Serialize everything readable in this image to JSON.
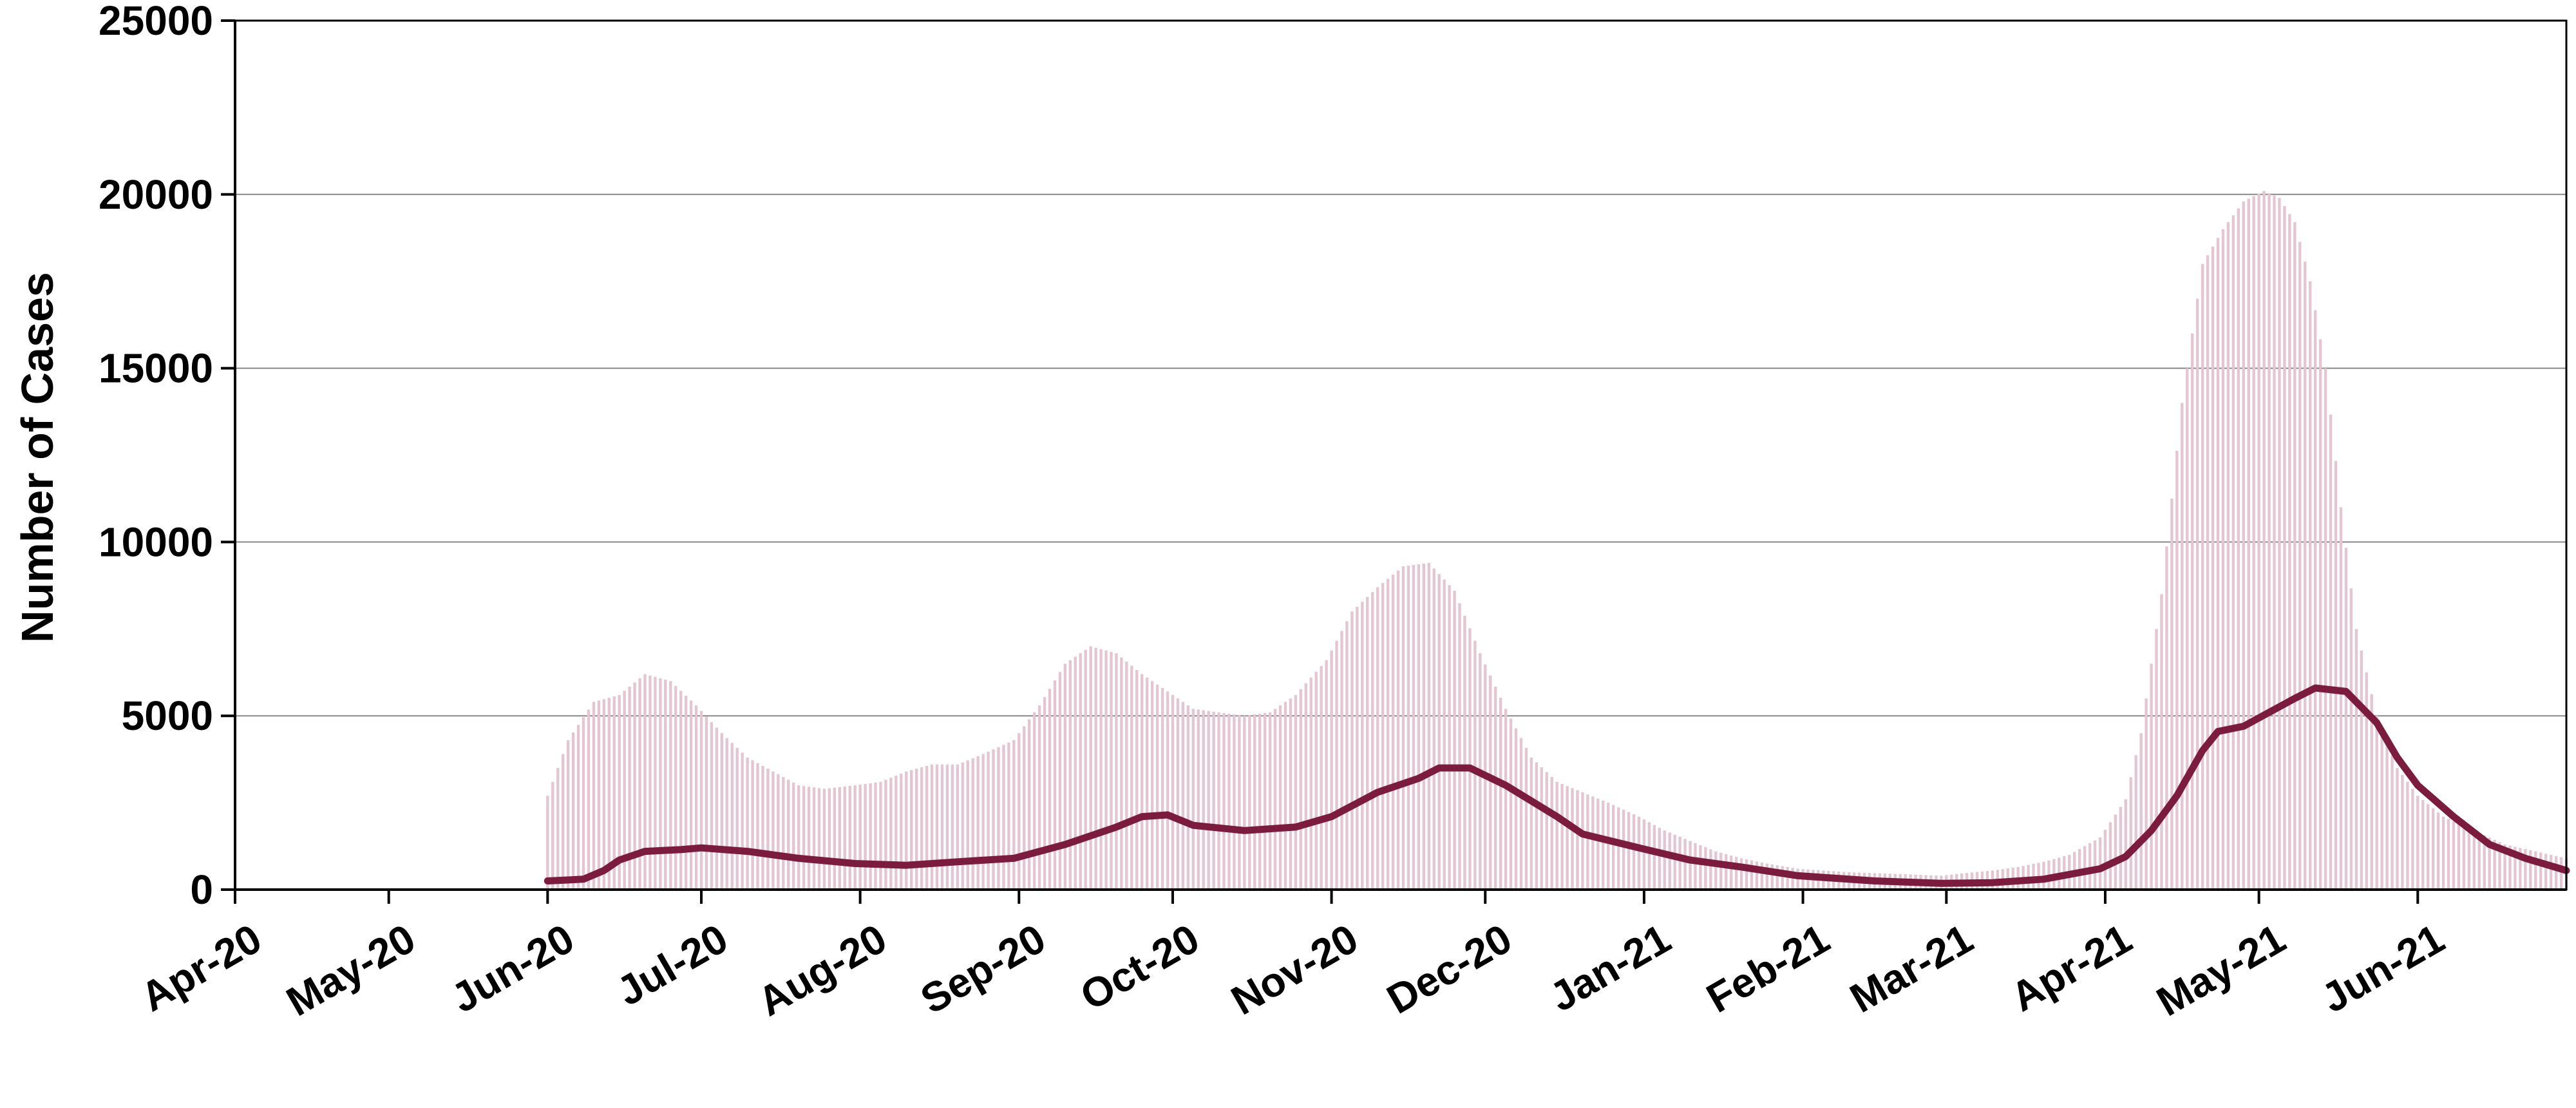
{
  "chart_data": {
    "type": "bar",
    "title": "",
    "xlabel": "",
    "ylabel": "Number of Cases",
    "ylim": [
      0,
      25000
    ],
    "y_ticks": [
      0,
      5000,
      10000,
      15000,
      20000,
      25000
    ],
    "y_tick_labels": [
      "0",
      "5000",
      "10000",
      "15000",
      "20000",
      "25000"
    ],
    "x_range": [
      "2020-04-01",
      "2021-06-30"
    ],
    "x_ticks": [
      {
        "date": "2020-04-01",
        "label": "Apr-20"
      },
      {
        "date": "2020-05-01",
        "label": "May-20"
      },
      {
        "date": "2020-06-01",
        "label": "Jun-20"
      },
      {
        "date": "2020-07-01",
        "label": "Jul-20"
      },
      {
        "date": "2020-08-01",
        "label": "Aug-20"
      },
      {
        "date": "2020-09-01",
        "label": "Sep-20"
      },
      {
        "date": "2020-10-01",
        "label": "Oct-20"
      },
      {
        "date": "2020-11-01",
        "label": "Nov-20"
      },
      {
        "date": "2020-12-01",
        "label": "Dec-20"
      },
      {
        "date": "2021-01-01",
        "label": "Jan-21"
      },
      {
        "date": "2021-02-01",
        "label": "Feb-21"
      },
      {
        "date": "2021-03-01",
        "label": "Mar-21"
      },
      {
        "date": "2021-04-01",
        "label": "Apr-21"
      },
      {
        "date": "2021-05-01",
        "label": "May-21"
      },
      {
        "date": "2021-06-01",
        "label": "Jun-21"
      }
    ],
    "grid": "horizontal",
    "legend": "none",
    "colors": {
      "bars": "#e3c6d2",
      "line": "#7b1c3e",
      "grid": "#888888",
      "axis": "#000000"
    },
    "series": [
      {
        "type": "bar",
        "points": [
          [
            "2020-06-01",
            2700
          ],
          [
            "2020-06-05",
            4300
          ],
          [
            "2020-06-10",
            5400
          ],
          [
            "2020-06-15",
            5600
          ],
          [
            "2020-06-20",
            6200
          ],
          [
            "2020-06-25",
            6000
          ],
          [
            "2020-06-30",
            5300
          ],
          [
            "2020-07-05",
            4500
          ],
          [
            "2020-07-10",
            3800
          ],
          [
            "2020-07-15",
            3400
          ],
          [
            "2020-07-20",
            3000
          ],
          [
            "2020-07-25",
            2900
          ],
          [
            "2020-07-31",
            3000
          ],
          [
            "2020-08-05",
            3100
          ],
          [
            "2020-08-10",
            3400
          ],
          [
            "2020-08-15",
            3600
          ],
          [
            "2020-08-20",
            3600
          ],
          [
            "2020-08-25",
            3900
          ],
          [
            "2020-08-31",
            4300
          ],
          [
            "2020-09-05",
            5300
          ],
          [
            "2020-09-10",
            6500
          ],
          [
            "2020-09-15",
            7000
          ],
          [
            "2020-09-20",
            6800
          ],
          [
            "2020-09-25",
            6200
          ],
          [
            "2020-09-30",
            5700
          ],
          [
            "2020-10-05",
            5200
          ],
          [
            "2020-10-10",
            5100
          ],
          [
            "2020-10-15",
            5000
          ],
          [
            "2020-10-20",
            5100
          ],
          [
            "2020-10-25",
            5600
          ],
          [
            "2020-10-31",
            6600
          ],
          [
            "2020-11-05",
            8000
          ],
          [
            "2020-11-10",
            8700
          ],
          [
            "2020-11-15",
            9300
          ],
          [
            "2020-11-20",
            9400
          ],
          [
            "2020-11-25",
            8600
          ],
          [
            "2020-11-30",
            6800
          ],
          [
            "2020-12-05",
            5200
          ],
          [
            "2020-12-10",
            3800
          ],
          [
            "2020-12-15",
            3100
          ],
          [
            "2020-12-20",
            2800
          ],
          [
            "2020-12-25",
            2500
          ],
          [
            "2020-12-31",
            2100
          ],
          [
            "2021-01-05",
            1700
          ],
          [
            "2021-01-10",
            1400
          ],
          [
            "2021-01-15",
            1100
          ],
          [
            "2021-01-20",
            900
          ],
          [
            "2021-01-25",
            750
          ],
          [
            "2021-01-31",
            600
          ],
          [
            "2021-02-10",
            500
          ],
          [
            "2021-02-20",
            450
          ],
          [
            "2021-02-28",
            400
          ],
          [
            "2021-03-05",
            480
          ],
          [
            "2021-03-10",
            550
          ],
          [
            "2021-03-15",
            650
          ],
          [
            "2021-03-20",
            800
          ],
          [
            "2021-03-25",
            1000
          ],
          [
            "2021-03-31",
            1500
          ],
          [
            "2021-04-05",
            2600
          ],
          [
            "2021-04-08",
            4500
          ],
          [
            "2021-04-12",
            8500
          ],
          [
            "2021-04-16",
            14000
          ],
          [
            "2021-04-20",
            18000
          ],
          [
            "2021-04-24",
            19000
          ],
          [
            "2021-04-28",
            19800
          ],
          [
            "2021-05-02",
            20100
          ],
          [
            "2021-05-05",
            19900
          ],
          [
            "2021-05-08",
            19200
          ],
          [
            "2021-05-11",
            17500
          ],
          [
            "2021-05-14",
            15000
          ],
          [
            "2021-05-17",
            11000
          ],
          [
            "2021-05-20",
            7500
          ],
          [
            "2021-05-24",
            5000
          ],
          [
            "2021-05-28",
            3500
          ],
          [
            "2021-06-01",
            2700
          ],
          [
            "2021-06-06",
            2100
          ],
          [
            "2021-06-12",
            1700
          ],
          [
            "2021-06-18",
            1300
          ],
          [
            "2021-06-24",
            1100
          ],
          [
            "2021-06-30",
            900
          ]
        ]
      },
      {
        "type": "line",
        "points": [
          [
            "2020-06-01",
            250
          ],
          [
            "2020-06-08",
            300
          ],
          [
            "2020-06-12",
            550
          ],
          [
            "2020-06-15",
            850
          ],
          [
            "2020-06-20",
            1100
          ],
          [
            "2020-06-27",
            1150
          ],
          [
            "2020-07-01",
            1200
          ],
          [
            "2020-07-10",
            1100
          ],
          [
            "2020-07-20",
            900
          ],
          [
            "2020-07-31",
            750
          ],
          [
            "2020-08-10",
            700
          ],
          [
            "2020-08-20",
            800
          ],
          [
            "2020-08-31",
            900
          ],
          [
            "2020-09-10",
            1300
          ],
          [
            "2020-09-20",
            1800
          ],
          [
            "2020-09-25",
            2100
          ],
          [
            "2020-09-30",
            2150
          ],
          [
            "2020-10-05",
            1850
          ],
          [
            "2020-10-15",
            1700
          ],
          [
            "2020-10-25",
            1800
          ],
          [
            "2020-11-01",
            2100
          ],
          [
            "2020-11-10",
            2800
          ],
          [
            "2020-11-18",
            3200
          ],
          [
            "2020-11-22",
            3500
          ],
          [
            "2020-11-28",
            3500
          ],
          [
            "2020-12-05",
            3000
          ],
          [
            "2020-12-15",
            2100
          ],
          [
            "2020-12-20",
            1600
          ],
          [
            "2020-12-31",
            1200
          ],
          [
            "2021-01-10",
            850
          ],
          [
            "2021-01-20",
            650
          ],
          [
            "2021-01-31",
            400
          ],
          [
            "2021-02-15",
            250
          ],
          [
            "2021-02-28",
            180
          ],
          [
            "2021-03-10",
            200
          ],
          [
            "2021-03-20",
            300
          ],
          [
            "2021-03-31",
            600
          ],
          [
            "2021-04-05",
            950
          ],
          [
            "2021-04-10",
            1700
          ],
          [
            "2021-04-15",
            2700
          ],
          [
            "2021-04-20",
            4000
          ],
          [
            "2021-04-23",
            4550
          ],
          [
            "2021-04-28",
            4700
          ],
          [
            "2021-05-03",
            5100
          ],
          [
            "2021-05-08",
            5500
          ],
          [
            "2021-05-12",
            5800
          ],
          [
            "2021-05-18",
            5700
          ],
          [
            "2021-05-24",
            4800
          ],
          [
            "2021-05-28",
            3800
          ],
          [
            "2021-06-01",
            3000
          ],
          [
            "2021-06-08",
            2100
          ],
          [
            "2021-06-15",
            1300
          ],
          [
            "2021-06-22",
            900
          ],
          [
            "2021-06-30",
            550
          ]
        ]
      }
    ]
  }
}
